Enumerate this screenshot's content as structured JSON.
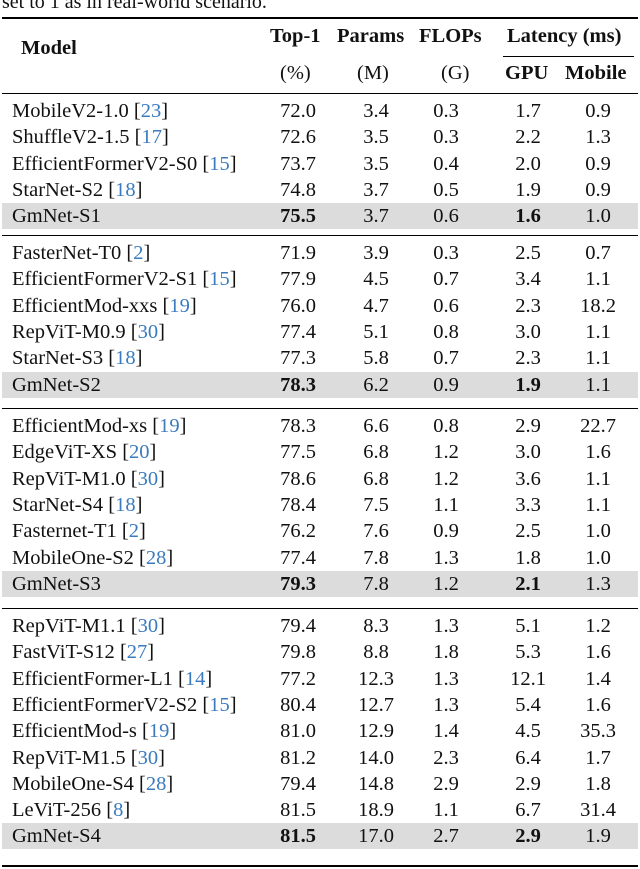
{
  "caption_tail": "set to 1 as in real-world scenario.",
  "header": {
    "model": "Model",
    "top1": "Top-1",
    "params": "Params",
    "flops": "FLOPs",
    "latency": "Latency (ms)",
    "top1_unit": "(%)",
    "params_unit": "(M)",
    "flops_unit": "(G)",
    "gpu": "GPU",
    "mobile": "Mobile"
  },
  "groups": [
    {
      "rows": [
        {
          "name": "MobileV2-1.0 ",
          "ref": "23",
          "top1": "72.0",
          "params": "3.4",
          "flops": "0.3",
          "gpu": "1.7",
          "mobile": "0.9"
        },
        {
          "name": "ShuffleV2-1.5 ",
          "ref": "17",
          "top1": "72.6",
          "params": "3.5",
          "flops": "0.3",
          "gpu": "2.2",
          "mobile": "1.3"
        },
        {
          "name": "EfficientFormerV2-S0 ",
          "ref": "15",
          "top1": "73.7",
          "params": "3.5",
          "flops": "0.4",
          "gpu": "2.0",
          "mobile": "0.9"
        },
        {
          "name": "StarNet-S2 ",
          "ref": "18",
          "top1": "74.8",
          "params": "3.7",
          "flops": "0.5",
          "gpu": "1.9",
          "mobile": "0.9"
        },
        {
          "name": "GmNet-S1",
          "top1": "75.5",
          "params": "3.7",
          "flops": "0.6",
          "gpu": "1.6",
          "mobile": "1.0",
          "highlight": true
        }
      ]
    },
    {
      "rows": [
        {
          "name": "FasterNet-T0 ",
          "ref": "2",
          "top1": "71.9",
          "params": "3.9",
          "flops": "0.3",
          "gpu": "2.5",
          "mobile": "0.7"
        },
        {
          "name": "EfficientFormerV2-S1 ",
          "ref": "15",
          "top1": "77.9",
          "params": "4.5",
          "flops": "0.7",
          "gpu": "3.4",
          "mobile": "1.1"
        },
        {
          "name": "EfficientMod-xxs ",
          "ref": "19",
          "top1": "76.0",
          "params": "4.7",
          "flops": "0.6",
          "gpu": "2.3",
          "mobile": "18.2"
        },
        {
          "name": "RepViT-M0.9 ",
          "ref": "30",
          "top1": "77.4",
          "params": "5.1",
          "flops": "0.8",
          "gpu": "3.0",
          "mobile": "1.1"
        },
        {
          "name": "StarNet-S3 ",
          "ref": "18",
          "top1": "77.3",
          "params": "5.8",
          "flops": "0.7",
          "gpu": "2.3",
          "mobile": "1.1"
        },
        {
          "name": "GmNet-S2",
          "top1": "78.3",
          "params": "6.2",
          "flops": "0.9",
          "gpu": "1.9",
          "mobile": "1.1",
          "highlight": true
        }
      ]
    },
    {
      "rows": [
        {
          "name": "EfficientMod-xs ",
          "ref": "19",
          "top1": "78.3",
          "params": "6.6",
          "flops": "0.8",
          "gpu": "2.9",
          "mobile": "22.7"
        },
        {
          "name": "EdgeViT-XS ",
          "ref": "20",
          "top1": "77.5",
          "params": "6.8",
          "flops": "1.2",
          "gpu": "3.0",
          "mobile": "1.6"
        },
        {
          "name": "RepViT-M1.0 ",
          "ref": "30",
          "top1": "78.6",
          "params": "6.8",
          "flops": "1.2",
          "gpu": "3.6",
          "mobile": "1.1"
        },
        {
          "name": "StarNet-S4 ",
          "ref": "18",
          "top1": "78.4",
          "params": "7.5",
          "flops": "1.1",
          "gpu": "3.3",
          "mobile": "1.1"
        },
        {
          "name": "Fasternet-T1 ",
          "ref": "2",
          "top1": "76.2",
          "params": "7.6",
          "flops": "0.9",
          "gpu": "2.5",
          "mobile": "1.0"
        },
        {
          "name": "MobileOne-S2 ",
          "ref": "28",
          "top1": "77.4",
          "params": "7.8",
          "flops": "1.3",
          "gpu": "1.8",
          "mobile": "1.0"
        },
        {
          "name": "GmNet-S3",
          "top1": "79.3",
          "params": "7.8",
          "flops": "1.2",
          "gpu": "2.1",
          "mobile": "1.3",
          "highlight": true
        }
      ]
    },
    {
      "rows": [
        {
          "name": "RepViT-M1.1 ",
          "ref": "30",
          "top1": "79.4",
          "params": "8.3",
          "flops": "1.3",
          "gpu": "5.1",
          "mobile": "1.2"
        },
        {
          "name": "FastViT-S12 ",
          "ref": "27",
          "top1": "79.8",
          "params": "8.8",
          "flops": "1.8",
          "gpu": "5.3",
          "mobile": "1.6"
        },
        {
          "name": "EfficientFormer-L1 ",
          "ref": "14",
          "top1": "77.2",
          "params": "12.3",
          "flops": "1.3",
          "gpu": "12.1",
          "mobile": "1.4"
        },
        {
          "name": "EfficientFormerV2-S2 ",
          "ref": "15",
          "top1": "80.4",
          "params": "12.7",
          "flops": "1.3",
          "gpu": "5.4",
          "mobile": "1.6"
        },
        {
          "name": "EfficientMod-s ",
          "ref": "19",
          "top1": "81.0",
          "params": "12.9",
          "flops": "1.4",
          "gpu": "4.5",
          "mobile": "35.3"
        },
        {
          "name": "RepViT-M1.5 ",
          "ref": "30",
          "top1": "81.2",
          "params": "14.0",
          "flops": "2.3",
          "gpu": "6.4",
          "mobile": "1.7"
        },
        {
          "name": "MobileOne-S4 ",
          "ref": "28",
          "top1": "79.4",
          "params": "14.8",
          "flops": "2.9",
          "gpu": "2.9",
          "mobile": "1.8"
        },
        {
          "name": "LeViT-256 ",
          "ref": "8",
          "top1": "81.5",
          "params": "18.9",
          "flops": "1.1",
          "gpu": "6.7",
          "mobile": "31.4"
        },
        {
          "name": "GmNet-S4",
          "top1": "81.5",
          "params": "17.0",
          "flops": "2.7",
          "gpu": "2.9",
          "mobile": "1.9",
          "highlight": true
        }
      ]
    }
  ]
}
